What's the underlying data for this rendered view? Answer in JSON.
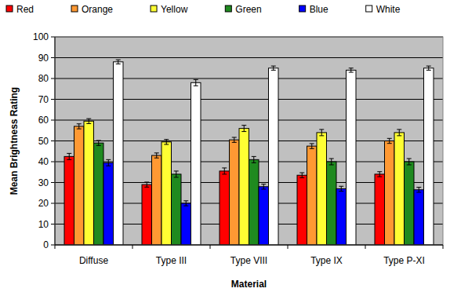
{
  "chart_data": {
    "type": "bar",
    "x_label": "Material",
    "y_label": "Mean Brightness Rating",
    "categories": [
      "Diffuse",
      "Type III",
      "Type VIII",
      "Type IX",
      "Type P-XI"
    ],
    "series": [
      {
        "name": "Red",
        "color": "#ff0000",
        "values": [
          42.5,
          29,
          35.5,
          33.5,
          34
        ],
        "errors": [
          1.5,
          1.2,
          1.5,
          1.2,
          1.2
        ]
      },
      {
        "name": "Orange",
        "color": "#ff9933",
        "values": [
          57,
          43,
          50.5,
          47.5,
          50
        ],
        "errors": [
          1.2,
          1.2,
          1.2,
          1.2,
          1.2
        ]
      },
      {
        "name": "Yellow",
        "color": "#ffff33",
        "values": [
          59.5,
          49.5,
          56,
          54,
          54
        ],
        "errors": [
          1.2,
          1.2,
          1.5,
          1.5,
          1.5
        ]
      },
      {
        "name": "Green",
        "color": "#1f8a1f",
        "values": [
          49,
          34,
          41,
          40,
          40
        ],
        "errors": [
          1.2,
          1.5,
          1.5,
          1.5,
          1.5
        ]
      },
      {
        "name": "Blue",
        "color": "#0000ff",
        "values": [
          39.5,
          20,
          28,
          27,
          26.5
        ],
        "errors": [
          1.5,
          1.2,
          1.2,
          1.2,
          1.2
        ]
      },
      {
        "name": "White",
        "color": "#ffffff",
        "values": [
          88,
          78,
          85,
          84,
          85
        ],
        "errors": [
          1,
          1.5,
          1,
          1,
          1
        ]
      }
    ],
    "ylim": [
      0,
      100
    ],
    "yticks": [
      0,
      10,
      20,
      30,
      40,
      50,
      60,
      70,
      80,
      90,
      100
    ],
    "grid": true,
    "legend": "top"
  }
}
